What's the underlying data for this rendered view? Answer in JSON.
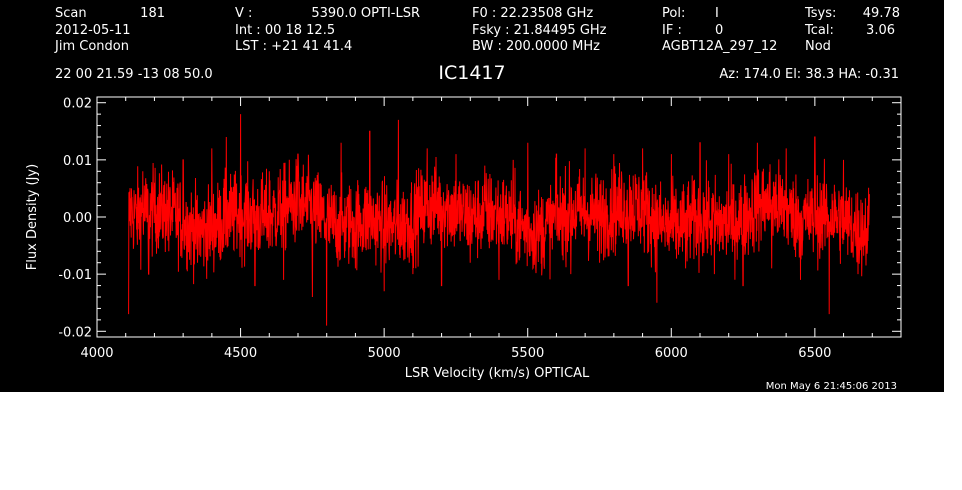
{
  "header": {
    "col1": [
      "Scan",
      "181",
      "2012-05-11",
      "Jim Condon"
    ],
    "col2": [
      "V   :",
      "5390.0 OPTI-LSR",
      "Int  :  00 18 12.5",
      "LST : +21 41 41.4"
    ],
    "col3": [
      "F0   :  22.23508 GHz",
      "Fsky :  21.84495 GHz",
      "BW   : 200.0000 MHz"
    ],
    "col4": [
      "Pol:",
      "I",
      "IF :",
      "0",
      "AGBT12A_297_12"
    ],
    "col5": [
      "Tsys:",
      "49.78",
      "Tcal:",
      "3.06",
      "Nod"
    ],
    "coords": "22 00 21.59  -13 08 50.0",
    "source": "IC1417",
    "azel": "Az: 174.0  El:  38.3  HA: -0.31",
    "timestamp": "Mon May  6 21:45:06 2013"
  },
  "chart_data": {
    "type": "line",
    "xlabel": "LSR Velocity (km/s) OPTICAL",
    "ylabel": "Flux Density (Jy)",
    "xlim": [
      4000,
      6800
    ],
    "ylim": [
      -0.021,
      0.021
    ],
    "xticks": [
      4000,
      4500,
      5000,
      5500,
      6000,
      6500
    ],
    "xticklabels": [
      "4000",
      "4500",
      "5000",
      "5500",
      "6000",
      "6500"
    ],
    "yticks": [
      -0.02,
      -0.01,
      0.0,
      0.01,
      0.02
    ],
    "yticklabels": [
      "-0.02",
      "-0.01",
      "0.00",
      "0.01",
      "0.02"
    ],
    "series": [
      {
        "color": "#ff0000",
        "x_range": [
          4110,
          6690
        ],
        "rms": 0.005,
        "max": 0.019,
        "min": -0.019,
        "points": [
          [
            4110,
            -0.017
          ],
          [
            4120,
            0.005
          ],
          [
            4140,
            -0.003
          ],
          [
            4160,
            0.008
          ],
          [
            4180,
            -0.01
          ],
          [
            4200,
            0.006
          ],
          [
            4250,
            -0.006
          ],
          [
            4300,
            0.01
          ],
          [
            4350,
            -0.008
          ],
          [
            4400,
            0.012
          ],
          [
            4450,
            0.014
          ],
          [
            4500,
            0.018
          ],
          [
            4520,
            0.006
          ],
          [
            4550,
            -0.012
          ],
          [
            4600,
            0.008
          ],
          [
            4650,
            -0.011
          ],
          [
            4700,
            0.011
          ],
          [
            4750,
            -0.014
          ],
          [
            4800,
            -0.019
          ],
          [
            4850,
            0.013
          ],
          [
            4900,
            -0.009
          ],
          [
            4950,
            0.015
          ],
          [
            5000,
            -0.013
          ],
          [
            5050,
            0.017
          ],
          [
            5100,
            -0.01
          ],
          [
            5150,
            0.012
          ],
          [
            5200,
            -0.012
          ],
          [
            5250,
            0.011
          ],
          [
            5300,
            -0.008
          ],
          [
            5350,
            0.009
          ],
          [
            5400,
            -0.011
          ],
          [
            5450,
            0.01
          ],
          [
            5500,
            0.013
          ],
          [
            5550,
            -0.009
          ],
          [
            5600,
            0.011
          ],
          [
            5650,
            -0.01
          ],
          [
            5700,
            0.012
          ],
          [
            5750,
            -0.008
          ],
          [
            5800,
            0.011
          ],
          [
            5850,
            -0.012
          ],
          [
            5900,
            0.012
          ],
          [
            5950,
            -0.015
          ],
          [
            6000,
            0.011
          ],
          [
            6050,
            -0.009
          ],
          [
            6100,
            0.013
          ],
          [
            6150,
            -0.01
          ],
          [
            6200,
            0.011
          ],
          [
            6250,
            -0.012
          ],
          [
            6300,
            0.013
          ],
          [
            6350,
            -0.009
          ],
          [
            6400,
            0.012
          ],
          [
            6450,
            -0.011
          ],
          [
            6500,
            0.014
          ],
          [
            6550,
            -0.017
          ],
          [
            6600,
            0.01
          ],
          [
            6650,
            -0.01
          ],
          [
            6690,
            0.004
          ]
        ]
      }
    ]
  }
}
